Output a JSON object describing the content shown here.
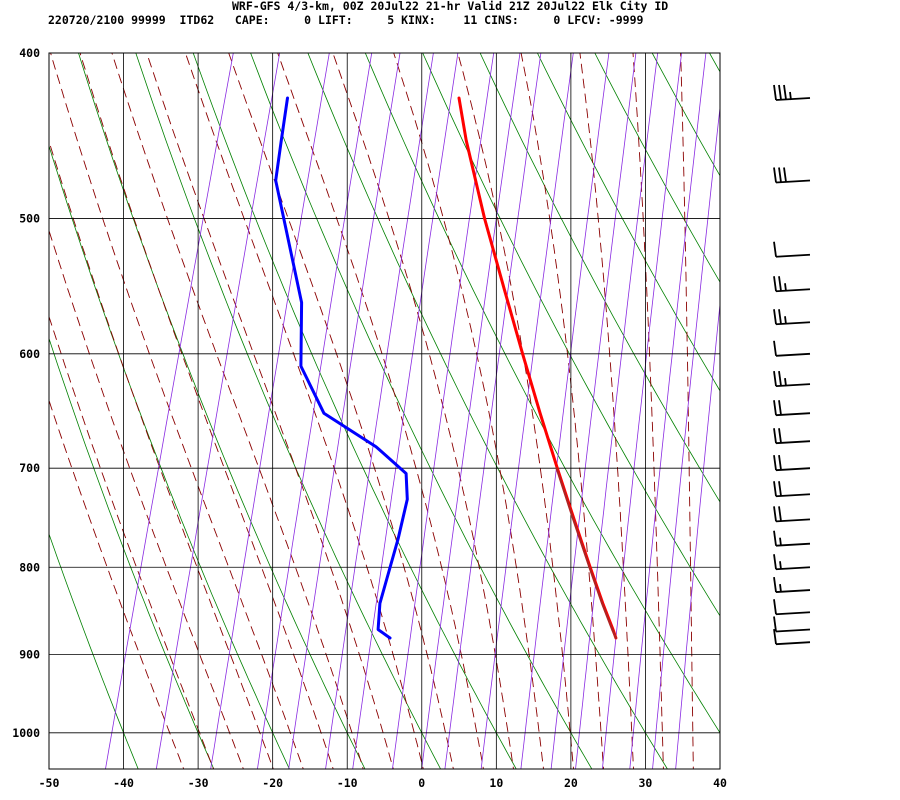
{
  "header": {
    "line1": "WRF-GFS 4/3-km, 00Z 20Jul22 21-hr Valid 21Z 20Jul22 Elk City ID",
    "line2": "220720/2100 99999  ITD62   CAPE:     0 LIFT:     5 KINX:    11 CINS:     0 LFCV: -9999"
  },
  "chart_data": {
    "type": "skew-t",
    "title": "WRF-GFS 4/3-km, 00Z 20Jul22 21-hr Valid 21Z 20Jul22 Elk City ID",
    "xlabel": "",
    "ylabel": "",
    "x_ticks": [
      "-50",
      "-40",
      "-30",
      "-20",
      "-10",
      "0",
      "10",
      "20",
      "30",
      "40"
    ],
    "y_ticks": [
      "400",
      "500",
      "600",
      "700",
      "800",
      "900",
      "1000"
    ],
    "xlim": [
      -50,
      40
    ],
    "ylim": [
      1050,
      400
    ],
    "y_scale": "log-pressure",
    "grid": true,
    "background_lines": {
      "dry_adiabats_color": "#008000",
      "moist_adiabats_color": "#8b0000",
      "mixing_ratio_color": "#8a2be2"
    },
    "series": [
      {
        "color": "#ff0000",
        "points": [
          {
            "p": 425,
            "t": -18.0
          },
          {
            "p": 450,
            "t": -15.5
          },
          {
            "p": 500,
            "t": -10.2
          },
          {
            "p": 550,
            "t": -5.0
          },
          {
            "p": 600,
            "t": -0.2
          },
          {
            "p": 650,
            "t": 4.3
          },
          {
            "p": 700,
            "t": 8.6
          },
          {
            "p": 750,
            "t": 12.7
          },
          {
            "p": 800,
            "t": 16.6
          },
          {
            "p": 840,
            "t": 19.6
          },
          {
            "p": 870,
            "t": 21.9
          },
          {
            "p": 880,
            "t": 22.6
          }
        ]
      },
      {
        "color": "#b22222",
        "points": [
          {
            "p": 700,
            "t": 8.5
          },
          {
            "p": 750,
            "t": 12.6
          },
          {
            "p": 800,
            "t": 16.5
          },
          {
            "p": 840,
            "t": 19.5
          },
          {
            "p": 870,
            "t": 21.8
          },
          {
            "p": 880,
            "t": 22.6
          }
        ]
      },
      {
        "color": "#0000ff",
        "points": [
          {
            "p": 425,
            "t": -41.0
          },
          {
            "p": 450,
            "t": -40.3
          },
          {
            "p": 475,
            "t": -39.6
          },
          {
            "p": 560,
            "t": -31.7
          },
          {
            "p": 610,
            "t": -29.5
          },
          {
            "p": 650,
            "t": -24.7
          },
          {
            "p": 680,
            "t": -16.5
          },
          {
            "p": 705,
            "t": -11.5
          },
          {
            "p": 730,
            "t": -10.4
          },
          {
            "p": 770,
            "t": -10.2
          },
          {
            "p": 840,
            "t": -10.3
          },
          {
            "p": 870,
            "t": -9.6
          },
          {
            "p": 880,
            "t": -7.7
          }
        ]
      }
    ],
    "wind_barbs": [
      {
        "p": 425,
        "speed_kt": 35
      },
      {
        "p": 475,
        "speed_kt": 30
      },
      {
        "p": 525,
        "speed_kt": 10
      },
      {
        "p": 550,
        "speed_kt": 25
      },
      {
        "p": 575,
        "speed_kt": 25
      },
      {
        "p": 600,
        "speed_kt": 10
      },
      {
        "p": 625,
        "speed_kt": 25
      },
      {
        "p": 650,
        "speed_kt": 20
      },
      {
        "p": 675,
        "speed_kt": 20
      },
      {
        "p": 700,
        "speed_kt": 20
      },
      {
        "p": 725,
        "speed_kt": 20
      },
      {
        "p": 750,
        "speed_kt": 20
      },
      {
        "p": 775,
        "speed_kt": 15
      },
      {
        "p": 800,
        "speed_kt": 15
      },
      {
        "p": 825,
        "speed_kt": 15
      },
      {
        "p": 850,
        "speed_kt": 10
      },
      {
        "p": 870,
        "speed_kt": 10
      },
      {
        "p": 885,
        "speed_kt": 10
      }
    ]
  }
}
